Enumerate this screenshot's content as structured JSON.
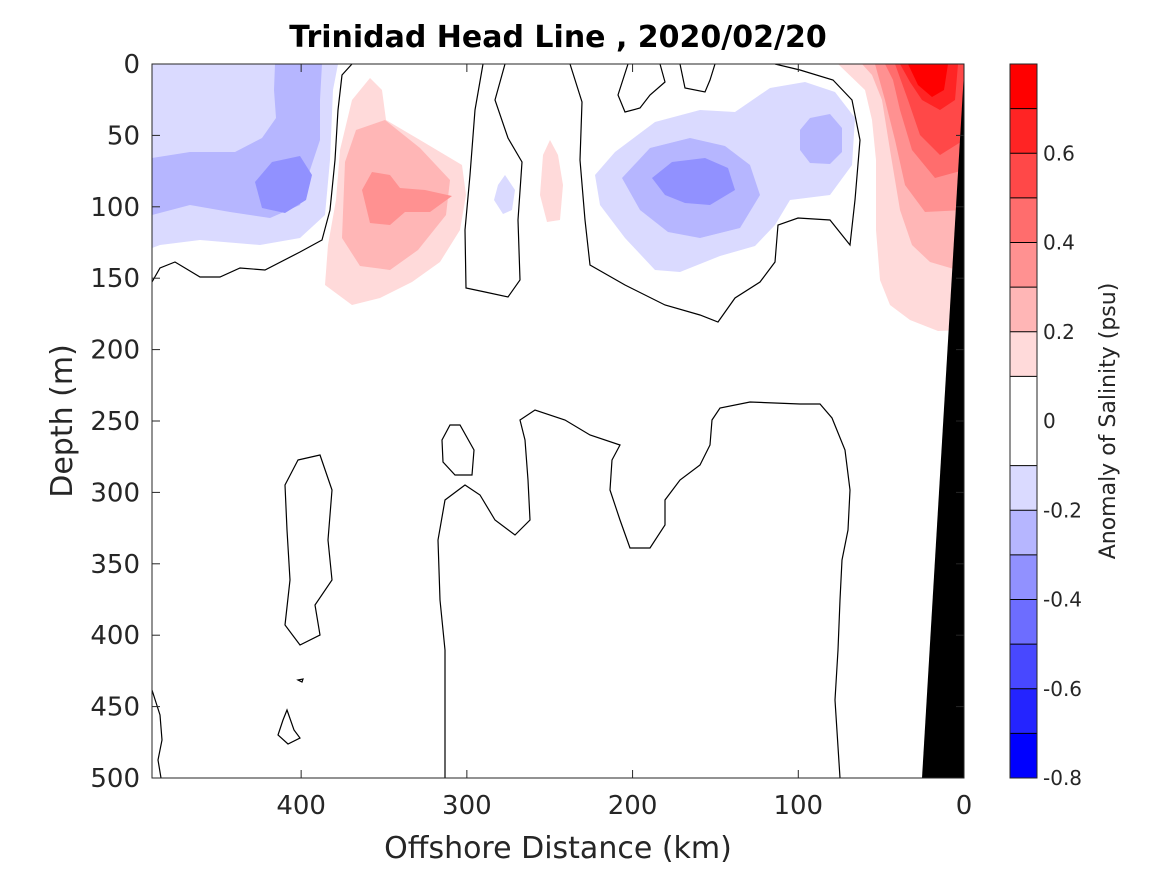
{
  "chart_data": {
    "type": "heatmap",
    "subtype": "filled-contour-section",
    "title": "Trinidad Head Line , 2020/02/20",
    "xlabel": "Offshore Distance (km)",
    "ylabel": "Depth (m)",
    "x_direction": "reversed",
    "y_direction": "reversed",
    "xlim": [
      490,
      0
    ],
    "ylim": [
      0,
      500
    ],
    "xticks": [
      400,
      300,
      200,
      100,
      0
    ],
    "xtick_labels": [
      "400",
      "300",
      "200",
      "100",
      "0"
    ],
    "yticks": [
      0,
      50,
      100,
      150,
      200,
      250,
      300,
      350,
      400,
      450,
      500
    ],
    "ytick_labels": [
      "0",
      "50",
      "100",
      "150",
      "200",
      "250",
      "300",
      "350",
      "400",
      "450",
      "500"
    ],
    "colorbar": {
      "label": "Anomaly of Salinity (psu)",
      "range": [
        -0.8,
        0.8
      ],
      "levels": [
        -0.8,
        -0.7,
        -0.6,
        -0.5,
        -0.4,
        -0.3,
        -0.2,
        -0.1,
        0.1,
        0.2,
        0.3,
        0.4,
        0.5,
        0.6,
        0.7,
        0.8
      ],
      "colors": [
        "#0000ff",
        "#2424ff",
        "#4848ff",
        "#6d6dff",
        "#9191ff",
        "#b6b6ff",
        "#dadaff",
        "#ffffff",
        "#ffdada",
        "#ffb6b6",
        "#ff9191",
        "#ff6d6d",
        "#ff4848",
        "#ff2424",
        "#ff0000"
      ],
      "ticks": [
        0.6,
        0.4,
        0.2,
        0,
        -0.2,
        -0.4,
        -0.6,
        -0.8
      ],
      "tick_labels": [
        "0.6",
        "0.4",
        "0.2",
        "0",
        "-0.2",
        "-0.4",
        "-0.6",
        "-0.8"
      ]
    },
    "anomaly_regions": [
      {
        "name": "offshore-fresh",
        "x": [
          490,
          310
        ],
        "depth": [
          0,
          155
        ],
        "min_anomaly": -0.4
      },
      {
        "name": "saline-core-350km",
        "x": [
          375,
          305
        ],
        "depth": [
          15,
          170
        ],
        "max_anomaly": 0.3
      },
      {
        "name": "fresh-core-170km",
        "x": [
          230,
          110
        ],
        "depth": [
          20,
          150
        ],
        "min_anomaly": -0.4
      },
      {
        "name": "fresh-core-60km",
        "x": [
          110,
          60
        ],
        "depth": [
          20,
          100
        ],
        "min_anomaly": -0.3
      },
      {
        "name": "saline-nearshore",
        "x": [
          55,
          5
        ],
        "depth": [
          0,
          190
        ],
        "max_anomaly": 0.8
      }
    ],
    "bathymetry_mask_color": "#000000",
    "zero_contour_color": "#000000",
    "grid": false
  }
}
